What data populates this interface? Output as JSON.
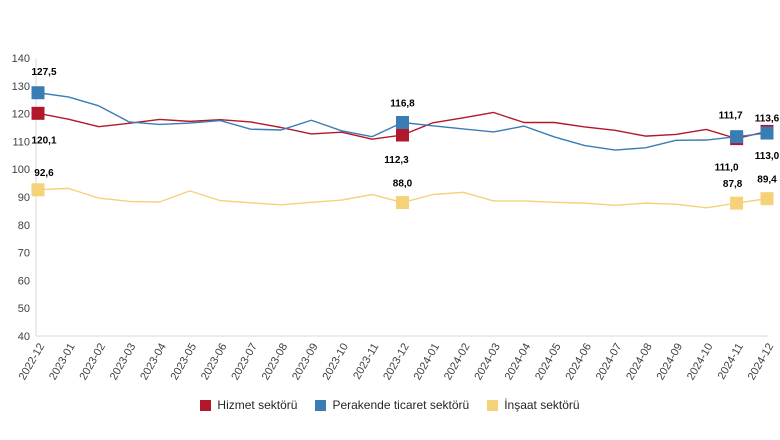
{
  "chart_data": {
    "type": "line",
    "title": "",
    "xlabel": "",
    "ylabel": "",
    "ylim": [
      40,
      140
    ],
    "yticks": [
      40,
      50,
      60,
      70,
      80,
      90,
      100,
      110,
      120,
      130,
      140
    ],
    "grid": false,
    "legend_position": "bottom",
    "categories": [
      "2022-12",
      "2023-01",
      "2023-02",
      "2023-03",
      "2023-04",
      "2023-05",
      "2023-06",
      "2023-07",
      "2023-08",
      "2023-09",
      "2023-10",
      "2023-11",
      "2023-12",
      "2024-01",
      "2024-02",
      "2024-03",
      "2024-04",
      "2024-05",
      "2024-06",
      "2024-07",
      "2024-08",
      "2024-09",
      "2024-10",
      "2024-11",
      "2024-12"
    ],
    "series": [
      {
        "name": "Hizmet sektörü",
        "color": "#B2182B",
        "values": [
          120.1,
          118.0,
          115.3,
          116.5,
          117.9,
          117.2,
          117.8,
          117.0,
          115.0,
          112.7,
          113.3,
          110.8,
          112.3,
          116.7,
          118.5,
          120.4,
          116.8,
          116.8,
          115.2,
          114.0,
          111.9,
          112.5,
          114.3,
          111.0,
          113.6
        ],
        "markers": [
          {
            "index": 0,
            "label": "120,1"
          },
          {
            "index": 12,
            "label": "112,3"
          },
          {
            "index": 23,
            "label": "111,0"
          },
          {
            "index": 24,
            "label": "113,6"
          }
        ]
      },
      {
        "name": "Perakende ticaret sektörü",
        "color": "#3A7DB5",
        "values": [
          127.5,
          126.0,
          122.8,
          117.0,
          116.1,
          116.6,
          117.5,
          114.4,
          114.1,
          117.6,
          113.8,
          111.7,
          116.8,
          115.6,
          114.5,
          113.4,
          115.5,
          111.6,
          108.5,
          106.9,
          107.7,
          110.4,
          110.5,
          111.7,
          113.0
        ],
        "markers": [
          {
            "index": 0,
            "label": "127,5"
          },
          {
            "index": 12,
            "label": "116,8"
          },
          {
            "index": 23,
            "label": "111,7"
          },
          {
            "index": 24,
            "label": "113,0"
          }
        ]
      },
      {
        "name": "İnşaat sektörü",
        "color": "#F5D27A",
        "values": [
          92.6,
          93.1,
          89.6,
          88.4,
          88.2,
          92.2,
          88.7,
          87.9,
          87.2,
          88.1,
          88.9,
          90.9,
          88.0,
          90.9,
          91.7,
          88.6,
          88.6,
          88.1,
          87.8,
          87.0,
          87.8,
          87.4,
          86.1,
          87.8,
          89.4
        ],
        "markers": [
          {
            "index": 0,
            "label": "92,6"
          },
          {
            "index": 12,
            "label": "88,0"
          },
          {
            "index": 23,
            "label": "87,8"
          },
          {
            "index": 24,
            "label": "89,4"
          }
        ]
      }
    ]
  }
}
